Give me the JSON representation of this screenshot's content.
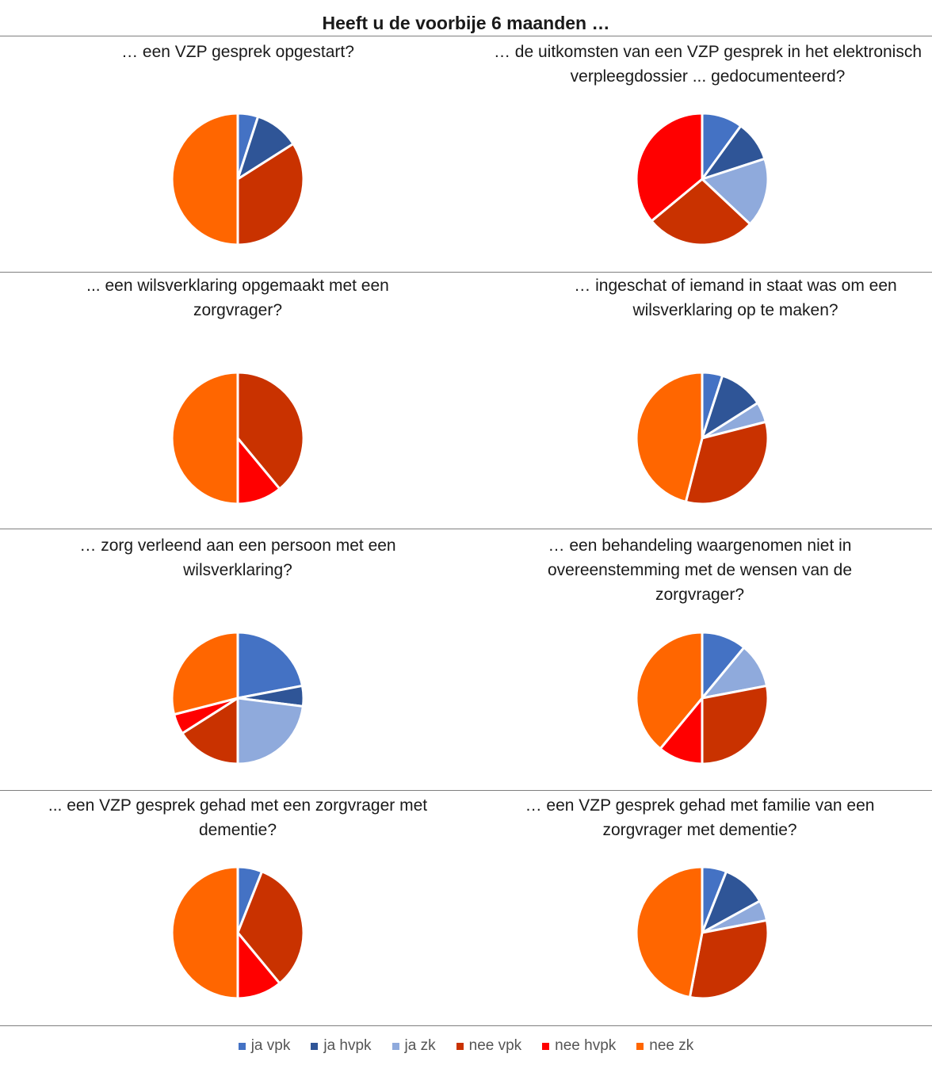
{
  "title": "Heeft u de voorbije 6 maanden …",
  "legend": [
    {
      "label": "ja vpk",
      "color": "#4472c4"
    },
    {
      "label": "ja hvpk",
      "color": "#2f5597"
    },
    {
      "label": "ja zk",
      "color": "#8faadc"
    },
    {
      "label": "nee vpk",
      "color": "#c93200"
    },
    {
      "label": "nee hvpk",
      "color": "#ff0000"
    },
    {
      "label": "nee zk",
      "color": "#ff6600"
    }
  ],
  "chart_data": [
    {
      "type": "pie",
      "title": "… een VZP gesprek opgestart?",
      "categories": [
        "ja vpk",
        "ja hvpk",
        "ja zk",
        "nee vpk",
        "nee hvpk",
        "nee zk"
      ],
      "values": [
        5,
        11,
        0,
        34,
        0,
        50
      ]
    },
    {
      "type": "pie",
      "title": "… de uitkomsten van een VZP gesprek in het elektronisch verpleegdossier ... gedocumenteerd?",
      "categories": [
        "ja vpk",
        "ja hvpk",
        "ja zk",
        "nee vpk",
        "nee hvpk",
        "nee zk"
      ],
      "values": [
        10,
        10,
        17,
        27,
        36,
        0
      ]
    },
    {
      "type": "pie",
      "title": "... een wilsverklaring opgemaakt met een zorgvrager?",
      "categories": [
        "ja vpk",
        "ja hvpk",
        "ja zk",
        "nee vpk",
        "nee hvpk",
        "nee zk"
      ],
      "values": [
        0,
        0,
        0,
        39,
        11,
        50
      ]
    },
    {
      "type": "pie",
      "title": "… ingeschat of iemand in staat was om een wilsverklaring op te maken?",
      "categories": [
        "ja vpk",
        "ja hvpk",
        "ja zk",
        "nee vpk",
        "nee hvpk",
        "nee zk"
      ],
      "values": [
        5,
        11,
        5,
        33,
        0,
        46
      ]
    },
    {
      "type": "pie",
      "title": "… zorg verleend aan een persoon met een wilsverklaring?",
      "categories": [
        "ja vpk",
        "ja hvpk",
        "ja zk",
        "nee vpk",
        "nee hvpk",
        "nee zk"
      ],
      "values": [
        22,
        5,
        23,
        16,
        5,
        29
      ]
    },
    {
      "type": "pie",
      "title": "… een behandeling waargenomen niet in overeenstemming met de wensen van de zorgvrager?",
      "categories": [
        "ja vpk",
        "ja hvpk",
        "ja zk",
        "nee vpk",
        "nee hvpk",
        "nee zk"
      ],
      "values": [
        11,
        0,
        11,
        28,
        11,
        39
      ]
    },
    {
      "type": "pie",
      "title": "... een VZP gesprek gehad met een zorgvrager met dementie?",
      "categories": [
        "ja vpk",
        "ja hvpk",
        "ja zk",
        "nee vpk",
        "nee hvpk",
        "nee zk"
      ],
      "values": [
        6,
        0,
        0,
        33,
        11,
        50
      ]
    },
    {
      "type": "pie",
      "title": "… een VZP gesprek gehad met familie van een zorgvrager met dementie?",
      "categories": [
        "ja vpk",
        "ja hvpk",
        "ja zk",
        "nee vpk",
        "nee hvpk",
        "nee zk"
      ],
      "values": [
        6,
        11,
        5,
        31,
        0,
        47
      ]
    }
  ]
}
